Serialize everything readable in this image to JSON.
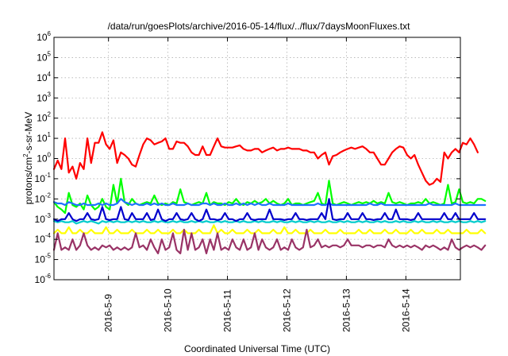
{
  "chart_data": {
    "type": "line",
    "title": "/data/run/goesPlots/archive/2016-05-14/flux/../flux/7daysMoonFluxes.txt",
    "xlabel": "Coordinated Universal Time (UTC)",
    "ylabel": {
      "pre": "protons/cm",
      "sup": "2",
      "post": "-s-sr-MeV"
    },
    "y_scale": "log",
    "ylim": [
      1e-06,
      1000000.0
    ],
    "y_ticks": [
      {
        "base": "10",
        "exp": "-6"
      },
      {
        "base": "10",
        "exp": "-5"
      },
      {
        "base": "10",
        "exp": "-4"
      },
      {
        "base": "10",
        "exp": "-3"
      },
      {
        "base": "10",
        "exp": "-2"
      },
      {
        "base": "10",
        "exp": "-1"
      },
      {
        "base": "10",
        "exp": "0"
      },
      {
        "base": "10",
        "exp": "1"
      },
      {
        "base": "10",
        "exp": "2"
      },
      {
        "base": "10",
        "exp": "3"
      },
      {
        "base": "10",
        "exp": "4"
      },
      {
        "base": "10",
        "exp": "5"
      },
      {
        "base": "10",
        "exp": "6"
      }
    ],
    "xlim": [
      "2016-05-08 02:00",
      "2016-05-14 22:00"
    ],
    "x_ticks": [
      "2016-5-9",
      "2016-5-10",
      "2016-5-11",
      "2016-5-12",
      "2016-5-13",
      "2016-5-14"
    ],
    "grid": true,
    "x_step_hours": 1.5,
    "series": [
      {
        "color": "#ff0000",
        "values": [
          0.3,
          0.8,
          0.3,
          10,
          0.2,
          0.4,
          0.1,
          0.6,
          0.3,
          10,
          0.6,
          6,
          6,
          20,
          5,
          3,
          8,
          0.6,
          2,
          1.5,
          1,
          0.5,
          0.4,
          1.5,
          5,
          10,
          8,
          5,
          6,
          7,
          10,
          3,
          3,
          7,
          6,
          6,
          4,
          2,
          1.5,
          1.5,
          4,
          1.5,
          1.5,
          4,
          10,
          4,
          3.5,
          3.5,
          3.5,
          4,
          4.5,
          3,
          2.5,
          2.5,
          3,
          3,
          2,
          2.5,
          3,
          3.5,
          2.5,
          3,
          3,
          3.5,
          3,
          3,
          3,
          2.5,
          2.5,
          2,
          2,
          1,
          1.5,
          2,
          0.5,
          1.3,
          1.5,
          2,
          2.5,
          3,
          3.5,
          3,
          3.5,
          4,
          3,
          2,
          2,
          1,
          0.5,
          0.5,
          1,
          2,
          3,
          4,
          3.5,
          1.5,
          1,
          1.5,
          0.5,
          0.2,
          0.08,
          0.05,
          0.06,
          0.1,
          0.07,
          2,
          1,
          2,
          3,
          2,
          6,
          5,
          10,
          5,
          2
        ]
      },
      {
        "color": "#00ff00",
        "values": [
          0.007,
          0.004,
          0.003,
          0.002,
          0.02,
          0.005,
          0.004,
          0.006,
          0.003,
          0.015,
          0.005,
          0.003,
          0.004,
          0.01,
          0.004,
          0.003,
          0.05,
          0.006,
          0.1,
          0.007,
          0.005,
          0.01,
          0.006,
          0.005,
          0.006,
          0.007,
          0.006,
          0.015,
          0.006,
          0.005,
          0.006,
          0.005,
          0.007,
          0.006,
          0.03,
          0.007,
          0.006,
          0.005,
          0.006,
          0.007,
          0.006,
          0.02,
          0.005,
          0.007,
          0.006,
          0.006,
          0.005,
          0.007,
          0.006,
          0.01,
          0.006,
          0.005,
          0.007,
          0.006,
          0.008,
          0.006,
          0.007,
          0.01,
          0.006,
          0.008,
          0.006,
          0.005,
          0.006,
          0.01,
          0.005,
          0.006,
          0.006,
          0.005,
          0.006,
          0.007,
          0.008,
          0.02,
          0.006,
          0.005,
          0.08,
          0.006,
          0.005,
          0.006,
          0.007,
          0.006,
          0.005,
          0.006,
          0.007,
          0.006,
          0.007,
          0.006,
          0.008,
          0.006,
          0.007,
          0.006,
          0.02,
          0.007,
          0.006,
          0.007,
          0.006,
          0.005,
          0.006,
          0.006,
          0.007,
          0.006,
          0.01,
          0.006,
          0.007,
          0.006,
          0.005,
          0.006,
          0.05,
          0.006,
          0.007,
          0.03,
          0.007,
          0.006,
          0.007,
          0.006,
          0.01,
          0.01,
          0.008
        ]
      },
      {
        "color": "#1e72ff",
        "values": [
          0.007,
          0.006,
          0.006,
          0.005,
          0.007,
          0.006,
          0.005,
          0.005,
          0.006,
          0.005,
          0.005,
          0.005,
          0.006,
          0.005,
          0.006,
          0.005,
          0.005,
          0.006,
          0.01,
          0.007,
          0.006,
          0.005,
          0.006,
          0.005,
          0.005,
          0.006,
          0.005,
          0.006,
          0.005,
          0.006,
          0.005,
          0.005,
          0.006,
          0.005,
          0.005,
          0.005,
          0.006,
          0.005,
          0.005,
          0.005,
          0.006,
          0.006,
          0.005,
          0.006,
          0.005,
          0.005,
          0.006,
          0.005,
          0.005,
          0.006,
          0.005,
          0.006,
          0.005,
          0.006,
          0.005,
          0.006,
          0.005,
          0.005,
          0.006,
          0.005,
          0.005,
          0.005,
          0.005,
          0.006,
          0.005,
          0.005,
          0.005,
          0.005,
          0.005,
          0.005,
          0.005,
          0.006,
          0.005,
          0.005,
          0.006,
          0.005,
          0.005,
          0.005,
          0.005,
          0.005,
          0.005,
          0.005,
          0.005,
          0.005,
          0.005,
          0.006,
          0.005,
          0.005,
          0.006,
          0.005,
          0.005,
          0.005,
          0.005,
          0.005,
          0.005,
          0.005,
          0.005,
          0.005,
          0.005,
          0.005,
          0.005,
          0.006,
          0.005,
          0.005,
          0.005,
          0.005,
          0.005,
          0.005,
          0.006,
          0.005,
          0.005,
          0.005,
          0.005,
          0.005,
          0.005,
          0.005,
          0.005
        ]
      },
      {
        "color": "#00cccc",
        "values": [
          0.0008,
          0.0007,
          0.0008,
          0.0007,
          0.0007,
          0.0008,
          0.0006,
          0.0007,
          0.0008,
          0.0007,
          0.0008,
          0.0007,
          0.0006,
          0.0008,
          0.0007,
          0.0008,
          0.0007,
          0.0008,
          0.0007,
          0.0007,
          0.0008,
          0.0007,
          0.0008,
          0.0007,
          0.0008,
          0.0007,
          0.0007,
          0.0008,
          0.0007,
          0.0008,
          0.0007,
          0.0007,
          0.0008,
          0.0007,
          0.0008,
          0.0007,
          0.0007,
          0.0008,
          0.0007,
          0.0008,
          0.0007,
          0.0008,
          0.0007,
          0.0007,
          0.0008,
          0.0007,
          0.0008,
          0.0007,
          0.0007,
          0.0008,
          0.0007,
          0.0008,
          0.0007,
          0.0007,
          0.0008,
          0.0007,
          0.0008,
          0.0007,
          0.0007,
          0.0008,
          0.0007,
          0.0008,
          0.0007,
          0.0007,
          0.0008,
          0.0007,
          0.0008,
          0.0007,
          0.0007,
          0.0008,
          0.0007,
          0.0008,
          0.0007,
          0.0007,
          0.0008,
          0.0007,
          0.0007,
          0.0008,
          0.0007,
          0.0008,
          0.0007,
          0.0007,
          0.0008,
          0.0007,
          0.0008,
          0.0007,
          0.0007,
          0.0008,
          0.0007,
          0.0008,
          0.0007,
          0.0007,
          0.0008,
          0.0007,
          0.0008,
          0.0007,
          0.0007,
          0.0008,
          0.0007,
          0.0008,
          0.0007,
          0.0007,
          0.0008,
          0.0007,
          0.0008,
          0.0007,
          0.0007,
          0.0008,
          0.0007,
          0.0008,
          0.0007,
          0.0007,
          0.0008,
          0.0007,
          0.0008,
          0.0007,
          0.0008
        ]
      },
      {
        "color": "#0000cc",
        "values": [
          0.001,
          0.0008,
          0.001,
          0.001,
          0.002,
          0.001,
          0.0008,
          0.001,
          0.001,
          0.002,
          0.001,
          0.0009,
          0.001,
          0.004,
          0.001,
          0.0009,
          0.001,
          0.001,
          0.004,
          0.001,
          0.0009,
          0.002,
          0.001,
          0.001,
          0.001,
          0.002,
          0.0009,
          0.001,
          0.003,
          0.001,
          0.0008,
          0.001,
          0.001,
          0.002,
          0.001,
          0.0009,
          0.001,
          0.002,
          0.001,
          0.0008,
          0.001,
          0.003,
          0.001,
          0.001,
          0.0009,
          0.001,
          0.002,
          0.001,
          0.001,
          0.0008,
          0.001,
          0.001,
          0.002,
          0.001,
          0.0009,
          0.001,
          0.001,
          0.001,
          0.003,
          0.001,
          0.001,
          0.001,
          0.0009,
          0.001,
          0.001,
          0.002,
          0.001,
          0.001,
          0.0009,
          0.001,
          0.001,
          0.001,
          0.002,
          0.001,
          0.01,
          0.001,
          0.0009,
          0.001,
          0.001,
          0.002,
          0.001,
          0.001,
          0.001,
          0.002,
          0.001,
          0.001,
          0.0009,
          0.001,
          0.001,
          0.002,
          0.001,
          0.001,
          0.003,
          0.001,
          0.001,
          0.001,
          0.0009,
          0.001,
          0.002,
          0.001,
          0.001,
          0.001,
          0.001,
          0.001,
          0.001,
          0.002,
          0.001,
          0.001,
          0.002,
          0.001,
          0.001,
          0.001,
          0.001,
          0.002,
          0.001,
          0.001,
          0.001
        ]
      },
      {
        "color": "#ffff00",
        "values": [
          0.0002,
          0.0003,
          0.0002,
          0.0002,
          0.0004,
          0.0002,
          0.0002,
          0.0003,
          0.0002,
          0.0002,
          0.0003,
          0.0002,
          0.0002,
          0.0002,
          0.0004,
          0.0002,
          0.0002,
          0.0003,
          0.0002,
          0.0002,
          0.0002,
          0.0003,
          0.0002,
          0.0002,
          0.0002,
          0.0003,
          0.0002,
          0.0002,
          0.0003,
          0.0002,
          0.0002,
          0.0002,
          0.0003,
          0.0002,
          0.0002,
          0.0003,
          0.0002,
          0.0002,
          0.0002,
          0.0003,
          0.0002,
          0.0002,
          0.0002,
          0.0005,
          0.0002,
          0.0003,
          0.0002,
          0.0002,
          0.0003,
          0.0002,
          0.0002,
          0.0002,
          0.0003,
          0.0002,
          0.0002,
          0.0003,
          0.0002,
          0.0002,
          0.0002,
          0.0003,
          0.0002,
          0.0002,
          0.0004,
          0.0002,
          0.0002,
          0.0003,
          0.0002,
          0.0002,
          0.0002,
          0.0003,
          0.0002,
          0.0002,
          0.0002,
          0.0003,
          0.0002,
          0.0002,
          0.0002,
          0.0003,
          0.0002,
          0.0002,
          0.0002,
          0.0002,
          0.0003,
          0.0002,
          0.0002,
          0.0003,
          0.0002,
          0.0002,
          0.0002,
          0.0003,
          0.0002,
          0.0002,
          0.0003,
          0.0002,
          0.0002,
          0.0002,
          0.0003,
          0.0002,
          0.0002,
          0.0003,
          0.0002,
          0.0002,
          0.0002,
          0.0003,
          0.0002,
          0.0002,
          0.0003,
          0.0002,
          0.0002,
          0.0002,
          0.0002,
          0.0003,
          0.0002,
          0.0002,
          0.0002,
          0.0003,
          0.0002
        ]
      },
      {
        "color": "#993366",
        "values": [
          3e-05,
          0.0002,
          3e-05,
          4e-05,
          3e-05,
          0.0001,
          3e-05,
          5e-05,
          0.0002,
          5e-05,
          3e-05,
          4e-05,
          3e-05,
          5e-05,
          4e-05,
          5e-05,
          3e-05,
          4e-05,
          3e-05,
          4e-05,
          3e-05,
          4e-05,
          0.0002,
          4e-05,
          5e-05,
          3e-05,
          0.0001,
          4e-05,
          2e-05,
          0.0001,
          3e-05,
          4e-05,
          0.0002,
          3e-05,
          2e-05,
          0.0003,
          3e-05,
          0.0002,
          3e-05,
          4e-05,
          0.0001,
          2e-05,
          0.0001,
          3e-05,
          0.0002,
          3e-05,
          4e-05,
          3e-05,
          0.0001,
          4e-05,
          3e-05,
          0.0001,
          3e-05,
          4e-05,
          0.0002,
          3e-05,
          0.0001,
          4e-05,
          3e-05,
          4e-05,
          0.0001,
          3e-05,
          4e-05,
          3e-05,
          0.0001,
          4e-05,
          3e-05,
          4e-05,
          0.0003,
          4e-05,
          5e-05,
          0.0001,
          4e-05,
          5e-05,
          4e-05,
          5e-05,
          5e-05,
          4e-05,
          5e-05,
          0.0001,
          5e-05,
          5e-05,
          5e-05,
          4e-05,
          5e-05,
          5e-05,
          4e-05,
          5e-05,
          5e-05,
          4e-05,
          0.0001,
          5e-05,
          4e-05,
          5e-05,
          4e-05,
          5e-05,
          4e-05,
          5e-05,
          4e-05,
          3e-05,
          5e-05,
          4e-05,
          5e-05,
          4e-05,
          3e-05,
          4e-05,
          3e-05,
          0.0001,
          4e-05,
          3e-05,
          4e-05,
          5e-05,
          4e-05,
          5e-05,
          4e-05,
          3e-05,
          5e-05
        ]
      }
    ]
  }
}
